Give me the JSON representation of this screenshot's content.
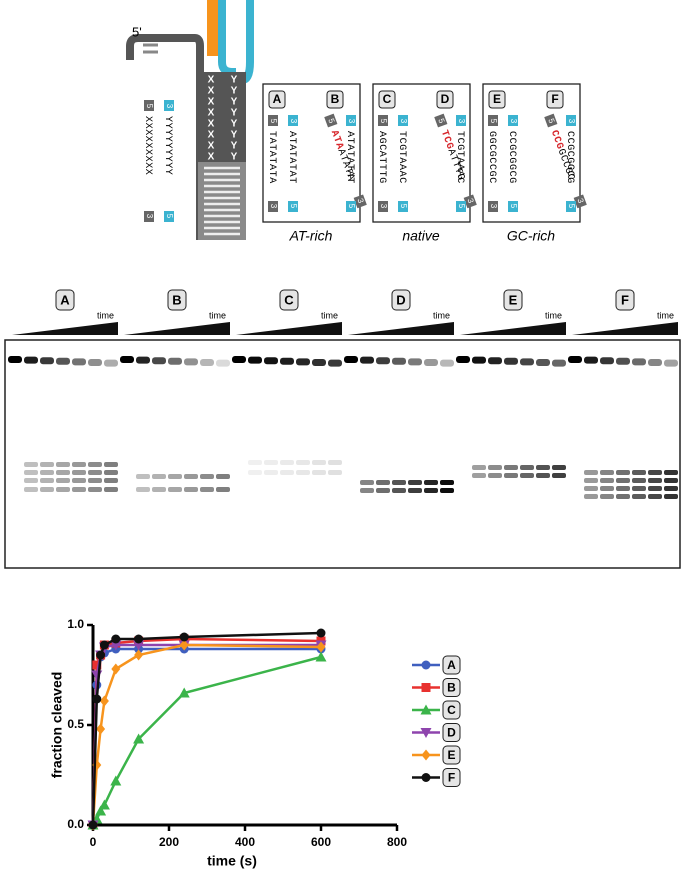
{
  "diagram": {
    "five_prime": "5'",
    "helix": {
      "top": "X",
      "bottom": "Y"
    },
    "legend_strands": [
      {
        "start": "5",
        "seq": "XXXXXXXXX",
        "end": "3"
      },
      {
        "start": "3",
        "seq": "YYYYYYYYY",
        "end": "5"
      }
    ],
    "boxes": [
      {
        "panels": [
          {
            "label": "A",
            "strands": [
              {
                "start": "5",
                "seq": "TATATATA",
                "end": "3"
              },
              {
                "start": "3",
                "seq": "ATATATAT",
                "end": "5"
              }
            ]
          },
          {
            "label": "B",
            "strands": [
              {
                "start": "5",
                "mismatch": "ATA",
                "seq": "ATATA",
                "end": "3"
              },
              {
                "start": "3",
                "seq": "ATATATAT",
                "end": "5"
              }
            ]
          }
        ],
        "caption": "AT-rich"
      },
      {
        "panels": [
          {
            "label": "C",
            "strands": [
              {
                "start": "5",
                "seq": "AGCATTTG",
                "end": "3"
              },
              {
                "start": "3",
                "seq": "TCGTAAAC",
                "end": "5"
              }
            ]
          },
          {
            "label": "D",
            "strands": [
              {
                "start": "5",
                "mismatch": "TCG",
                "seq": "ATTTG",
                "end": "3"
              },
              {
                "start": "3",
                "seq": "TCGTAAAC",
                "end": "5"
              }
            ]
          }
        ],
        "caption": "native"
      },
      {
        "panels": [
          {
            "label": "E",
            "strands": [
              {
                "start": "5",
                "seq": "GGCGCCGC",
                "end": "3"
              },
              {
                "start": "3",
                "seq": "CCGCGGCG",
                "end": "5"
              }
            ]
          },
          {
            "label": "F",
            "strands": [
              {
                "start": "5",
                "mismatch": "CCG",
                "seq": "GCCGC",
                "end": "3"
              },
              {
                "start": "3",
                "seq": "CCGCGGCG",
                "end": "5"
              }
            ]
          }
        ],
        "caption": "GC-rich"
      }
    ]
  },
  "gel": {
    "lanes": [
      "A",
      "B",
      "C",
      "D",
      "E",
      "F"
    ],
    "time_label": "time"
  },
  "chart_data": {
    "type": "line",
    "xlabel": "time (s)",
    "ylabel": "fraction cleaved",
    "x": [
      0,
      10,
      20,
      30,
      60,
      120,
      240,
      600
    ],
    "xlim": [
      0,
      800
    ],
    "xticks": [
      0,
      200,
      400,
      600,
      800
    ],
    "ylim": [
      0,
      1
    ],
    "yticks": [
      {
        "value": 0,
        "label": "0.0"
      },
      {
        "value": 0.5,
        "label": "0.5"
      },
      {
        "value": 1,
        "label": "1.0"
      }
    ],
    "series": [
      {
        "name": "A",
        "color": "#3f5fbf",
        "marker": "circle",
        "values": [
          0,
          0.7,
          0.84,
          0.86,
          0.88,
          0.88,
          0.88,
          0.88
        ]
      },
      {
        "name": "B",
        "color": "#e8312f",
        "marker": "square",
        "values": [
          0,
          0.8,
          0.85,
          0.9,
          0.91,
          0.92,
          0.93,
          0.92
        ]
      },
      {
        "name": "C",
        "color": "#3bb44a",
        "marker": "triangle",
        "values": [
          0,
          0.03,
          0.07,
          0.1,
          0.22,
          0.43,
          0.66,
          0.84
        ]
      },
      {
        "name": "D",
        "color": "#8e44ad",
        "marker": "triangle-down",
        "values": [
          0,
          0.75,
          0.85,
          0.89,
          0.9,
          0.9,
          0.9,
          0.9
        ]
      },
      {
        "name": "E",
        "color": "#f7941d",
        "marker": "diamond",
        "values": [
          0,
          0.3,
          0.48,
          0.62,
          0.78,
          0.85,
          0.9,
          0.89
        ]
      },
      {
        "name": "F",
        "color": "#111111",
        "marker": "circle",
        "values": [
          0,
          0.63,
          0.85,
          0.9,
          0.93,
          0.93,
          0.94,
          0.96
        ]
      }
    ]
  }
}
